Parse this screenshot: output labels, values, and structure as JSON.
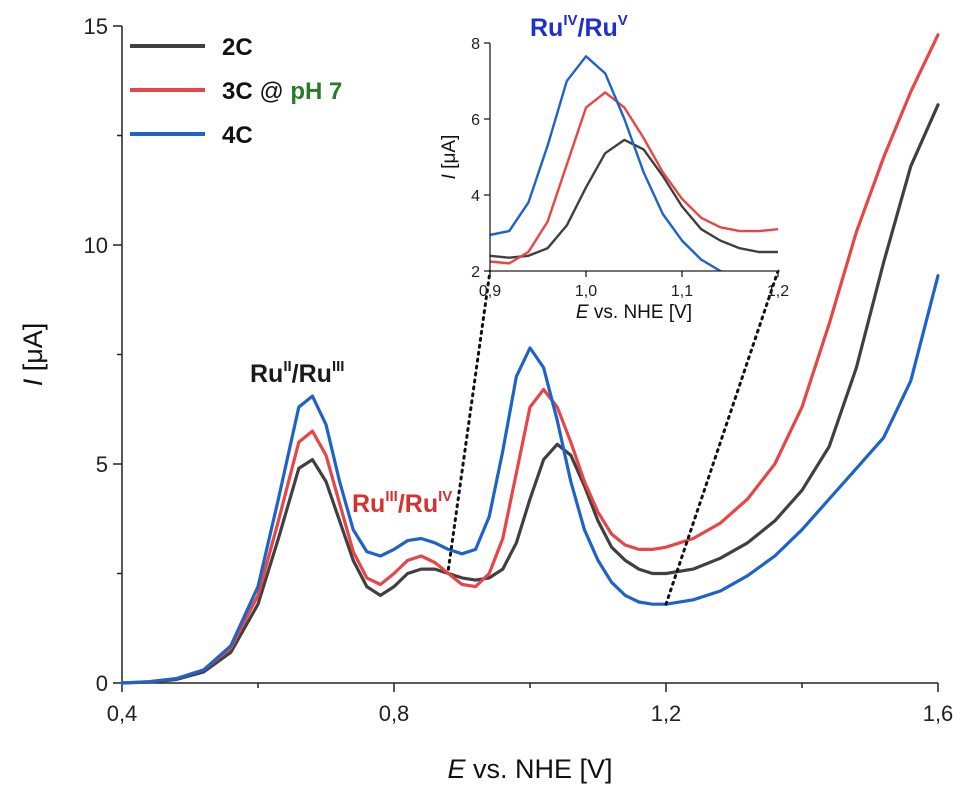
{
  "chart_data": {
    "type": "line",
    "xlabel_italic": "E",
    "xlabel_rest": " vs. NHE [V]",
    "ylabel_italic": "I",
    "ylabel_rest": " [μA]",
    "xlim": [
      0.4,
      1.6
    ],
    "ylim": [
      0,
      15
    ],
    "x_ticks": [
      0.4,
      0.8,
      1.2,
      1.6
    ],
    "x_tick_labels": [
      "0,4",
      "0,8",
      "1,2",
      "1,6"
    ],
    "y_ticks": [
      0,
      5,
      10,
      15
    ],
    "y_tick_labels": [
      "0",
      "5",
      "10",
      "15"
    ],
    "grid": false,
    "legend": {
      "placement": "top-left",
      "items": [
        {
          "label": "2C",
          "color": "#404040"
        },
        {
          "label": "3C",
          "color": "#e84646",
          "suffix_plain": " @ ",
          "suffix_colored": "pH 7",
          "suffix_color": "#2a7a2a"
        },
        {
          "label": "4C",
          "color": "#1e63c8"
        }
      ]
    },
    "annotations": [
      {
        "base": "Ru",
        "sup1": "II",
        "sep": "/Ru",
        "sup2": "III",
        "color": "#1a1a1a"
      },
      {
        "base": "Ru",
        "sup1": "III",
        "sep": "/Ru",
        "sup2": "IV",
        "color": "#d63030"
      },
      {
        "base": "Ru",
        "sup1": "IV",
        "sep": "/Ru",
        "sup2": "V",
        "color": "#1f2fcc"
      }
    ],
    "series": [
      {
        "name": "2C",
        "color": "#404040",
        "x": [
          0.4,
          0.44,
          0.48,
          0.52,
          0.56,
          0.6,
          0.63,
          0.66,
          0.68,
          0.7,
          0.72,
          0.74,
          0.76,
          0.78,
          0.8,
          0.82,
          0.84,
          0.86,
          0.88,
          0.9,
          0.92,
          0.94,
          0.96,
          0.98,
          1.0,
          1.02,
          1.04,
          1.06,
          1.08,
          1.1,
          1.12,
          1.14,
          1.16,
          1.18,
          1.2,
          1.24,
          1.28,
          1.32,
          1.36,
          1.4,
          1.44,
          1.48,
          1.52,
          1.56,
          1.6
        ],
        "y": [
          0.0,
          0.02,
          0.08,
          0.25,
          0.7,
          1.8,
          3.3,
          4.9,
          5.1,
          4.6,
          3.7,
          2.8,
          2.2,
          2.0,
          2.2,
          2.5,
          2.6,
          2.6,
          2.5,
          2.4,
          2.35,
          2.4,
          2.6,
          3.2,
          4.2,
          5.1,
          5.45,
          5.2,
          4.5,
          3.7,
          3.1,
          2.8,
          2.6,
          2.5,
          2.5,
          2.6,
          2.85,
          3.2,
          3.7,
          4.4,
          5.4,
          7.2,
          9.6,
          11.8,
          13.2
        ]
      },
      {
        "name": "3C",
        "color": "#e84646",
        "x": [
          0.4,
          0.44,
          0.48,
          0.52,
          0.56,
          0.6,
          0.63,
          0.66,
          0.68,
          0.7,
          0.72,
          0.74,
          0.76,
          0.78,
          0.8,
          0.82,
          0.84,
          0.86,
          0.88,
          0.9,
          0.92,
          0.94,
          0.96,
          0.98,
          1.0,
          1.02,
          1.04,
          1.06,
          1.08,
          1.1,
          1.12,
          1.14,
          1.16,
          1.18,
          1.2,
          1.24,
          1.28,
          1.32,
          1.36,
          1.4,
          1.44,
          1.48,
          1.52,
          1.56,
          1.6
        ],
        "y": [
          0.0,
          0.03,
          0.1,
          0.3,
          0.8,
          2.0,
          3.7,
          5.5,
          5.75,
          5.2,
          4.1,
          3.0,
          2.4,
          2.25,
          2.5,
          2.8,
          2.9,
          2.75,
          2.5,
          2.25,
          2.2,
          2.5,
          3.3,
          4.8,
          6.3,
          6.7,
          6.3,
          5.5,
          4.6,
          3.9,
          3.4,
          3.15,
          3.05,
          3.05,
          3.1,
          3.3,
          3.65,
          4.2,
          5.0,
          6.3,
          8.2,
          10.3,
          12.0,
          13.5,
          14.8
        ]
      },
      {
        "name": "4C",
        "color": "#1e63c8",
        "x": [
          0.4,
          0.44,
          0.48,
          0.52,
          0.56,
          0.6,
          0.63,
          0.66,
          0.68,
          0.7,
          0.72,
          0.74,
          0.76,
          0.78,
          0.8,
          0.82,
          0.84,
          0.86,
          0.88,
          0.9,
          0.92,
          0.94,
          0.96,
          0.98,
          1.0,
          1.02,
          1.04,
          1.06,
          1.08,
          1.1,
          1.12,
          1.14,
          1.16,
          1.18,
          1.2,
          1.24,
          1.28,
          1.32,
          1.36,
          1.4,
          1.44,
          1.48,
          1.52,
          1.56,
          1.6
        ],
        "y": [
          0.0,
          0.03,
          0.1,
          0.3,
          0.85,
          2.2,
          4.2,
          6.3,
          6.55,
          5.9,
          4.6,
          3.5,
          3.0,
          2.9,
          3.05,
          3.25,
          3.3,
          3.2,
          3.05,
          2.95,
          3.05,
          3.8,
          5.3,
          7.0,
          7.65,
          7.2,
          6.0,
          4.6,
          3.5,
          2.8,
          2.3,
          2.0,
          1.85,
          1.8,
          1.8,
          1.9,
          2.1,
          2.45,
          2.9,
          3.5,
          4.2,
          4.9,
          5.6,
          6.9,
          9.3
        ]
      }
    ],
    "inset": {
      "xlabel_italic": "E",
      "xlabel_rest": " vs. NHE [V]",
      "ylabel_italic": "I",
      "ylabel_rest": " [μA]",
      "xlim": [
        0.9,
        1.2
      ],
      "ylim": [
        2,
        8
      ],
      "x_ticks": [
        0.9,
        1.0,
        1.1,
        1.2
      ],
      "x_tick_labels": [
        "0,9",
        "1,0",
        "1,1",
        "1,2"
      ],
      "y_ticks": [
        2,
        4,
        6,
        8
      ],
      "y_tick_labels": [
        "2",
        "4",
        "6",
        "8"
      ]
    }
  }
}
